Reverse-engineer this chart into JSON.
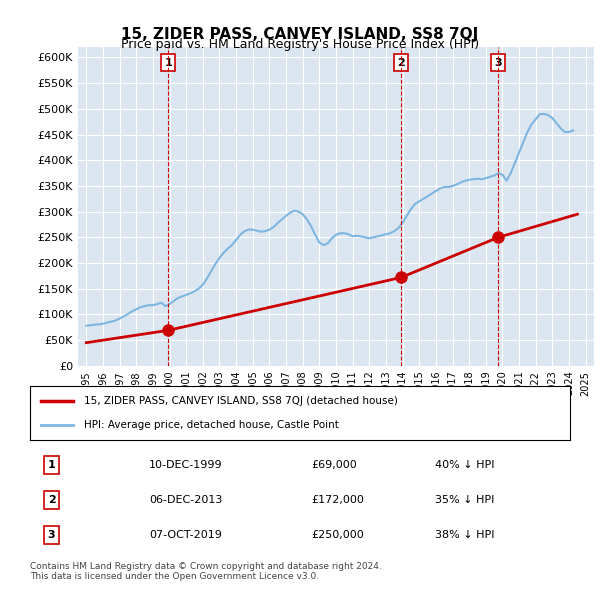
{
  "title": "15, ZIDER PASS, CANVEY ISLAND, SS8 7QJ",
  "subtitle": "Price paid vs. HM Land Registry's House Price Index (HPI)",
  "ylabel": "",
  "ylim": [
    0,
    620000
  ],
  "yticks": [
    0,
    50000,
    100000,
    150000,
    200000,
    250000,
    300000,
    350000,
    400000,
    450000,
    500000,
    550000,
    600000
  ],
  "ytick_labels": [
    "£0",
    "£50K",
    "£100K",
    "£150K",
    "£200K",
    "£250K",
    "£300K",
    "£350K",
    "£400K",
    "£450K",
    "£500K",
    "£550K",
    "£600K"
  ],
  "bg_color": "#dce6f1",
  "plot_bg_color": "#dce6f1",
  "grid_color": "#ffffff",
  "hpi_color": "#7eb6e0",
  "price_color": "#cc0000",
  "vline_color": "#cc0000",
  "sale_marker_color": "#cc0000",
  "transactions": [
    {
      "label": "1",
      "date_num": 1999.92,
      "price": 69000
    },
    {
      "label": "2",
      "date_num": 2013.92,
      "price": 172000
    },
    {
      "label": "3",
      "date_num": 2019.75,
      "price": 250000
    }
  ],
  "transaction_table": [
    {
      "num": "1",
      "date": "10-DEC-1999",
      "price": "£69,000",
      "hpi": "40% ↓ HPI"
    },
    {
      "num": "2",
      "date": "06-DEC-2013",
      "price": "£172,000",
      "hpi": "35% ↓ HPI"
    },
    {
      "num": "3",
      "date": "07-OCT-2019",
      "price": "£250,000",
      "hpi": "38% ↓ HPI"
    }
  ],
  "legend_label_price": "15, ZIDER PASS, CANVEY ISLAND, SS8 7QJ (detached house)",
  "legend_label_hpi": "HPI: Average price, detached house, Castle Point",
  "footer": "Contains HM Land Registry data © Crown copyright and database right 2024.\nThis data is licensed under the Open Government Licence v3.0.",
  "hpi_data": {
    "years": [
      1995.0,
      1995.25,
      1995.5,
      1995.75,
      1996.0,
      1996.25,
      1996.5,
      1996.75,
      1997.0,
      1997.25,
      1997.5,
      1997.75,
      1998.0,
      1998.25,
      1998.5,
      1998.75,
      1999.0,
      1999.25,
      1999.5,
      1999.75,
      2000.0,
      2000.25,
      2000.5,
      2000.75,
      2001.0,
      2001.25,
      2001.5,
      2001.75,
      2002.0,
      2002.25,
      2002.5,
      2002.75,
      2003.0,
      2003.25,
      2003.5,
      2003.75,
      2004.0,
      2004.25,
      2004.5,
      2004.75,
      2005.0,
      2005.25,
      2005.5,
      2005.75,
      2006.0,
      2006.25,
      2006.5,
      2006.75,
      2007.0,
      2007.25,
      2007.5,
      2007.75,
      2008.0,
      2008.25,
      2008.5,
      2008.75,
      2009.0,
      2009.25,
      2009.5,
      2009.75,
      2010.0,
      2010.25,
      2010.5,
      2010.75,
      2011.0,
      2011.25,
      2011.5,
      2011.75,
      2012.0,
      2012.25,
      2012.5,
      2012.75,
      2013.0,
      2013.25,
      2013.5,
      2013.75,
      2014.0,
      2014.25,
      2014.5,
      2014.75,
      2015.0,
      2015.25,
      2015.5,
      2015.75,
      2016.0,
      2016.25,
      2016.5,
      2016.75,
      2017.0,
      2017.25,
      2017.5,
      2017.75,
      2018.0,
      2018.25,
      2018.5,
      2018.75,
      2019.0,
      2019.25,
      2019.5,
      2019.75,
      2020.0,
      2020.25,
      2020.5,
      2020.75,
      2021.0,
      2021.25,
      2021.5,
      2021.75,
      2022.0,
      2022.25,
      2022.5,
      2022.75,
      2023.0,
      2023.25,
      2023.5,
      2023.75,
      2024.0,
      2024.25
    ],
    "values": [
      78000,
      79000,
      80000,
      80500,
      82000,
      84000,
      86000,
      88000,
      92000,
      96000,
      101000,
      106000,
      110000,
      114000,
      116000,
      118000,
      118000,
      120000,
      123000,
      116000,
      120000,
      126000,
      132000,
      135000,
      138000,
      141000,
      145000,
      150000,
      158000,
      170000,
      184000,
      198000,
      210000,
      220000,
      228000,
      235000,
      245000,
      255000,
      262000,
      265000,
      265000,
      263000,
      261000,
      262000,
      265000,
      270000,
      278000,
      285000,
      292000,
      298000,
      302000,
      300000,
      295000,
      285000,
      272000,
      255000,
      240000,
      235000,
      238000,
      248000,
      255000,
      258000,
      258000,
      256000,
      252000,
      253000,
      252000,
      250000,
      248000,
      250000,
      252000,
      254000,
      256000,
      258000,
      262000,
      268000,
      278000,
      292000,
      305000,
      315000,
      320000,
      325000,
      330000,
      335000,
      340000,
      345000,
      348000,
      348000,
      350000,
      353000,
      357000,
      360000,
      362000,
      363000,
      364000,
      363000,
      365000,
      368000,
      370000,
      375000,
      372000,
      360000,
      375000,
      395000,
      415000,
      435000,
      455000,
      470000,
      480000,
      490000,
      490000,
      488000,
      482000,
      472000,
      462000,
      455000,
      455000,
      458000
    ]
  },
  "price_line_data": {
    "years": [
      1995.0,
      1999.92,
      2013.92,
      2019.75,
      2024.5
    ],
    "values": [
      45000,
      69000,
      172000,
      250000,
      295000
    ]
  }
}
